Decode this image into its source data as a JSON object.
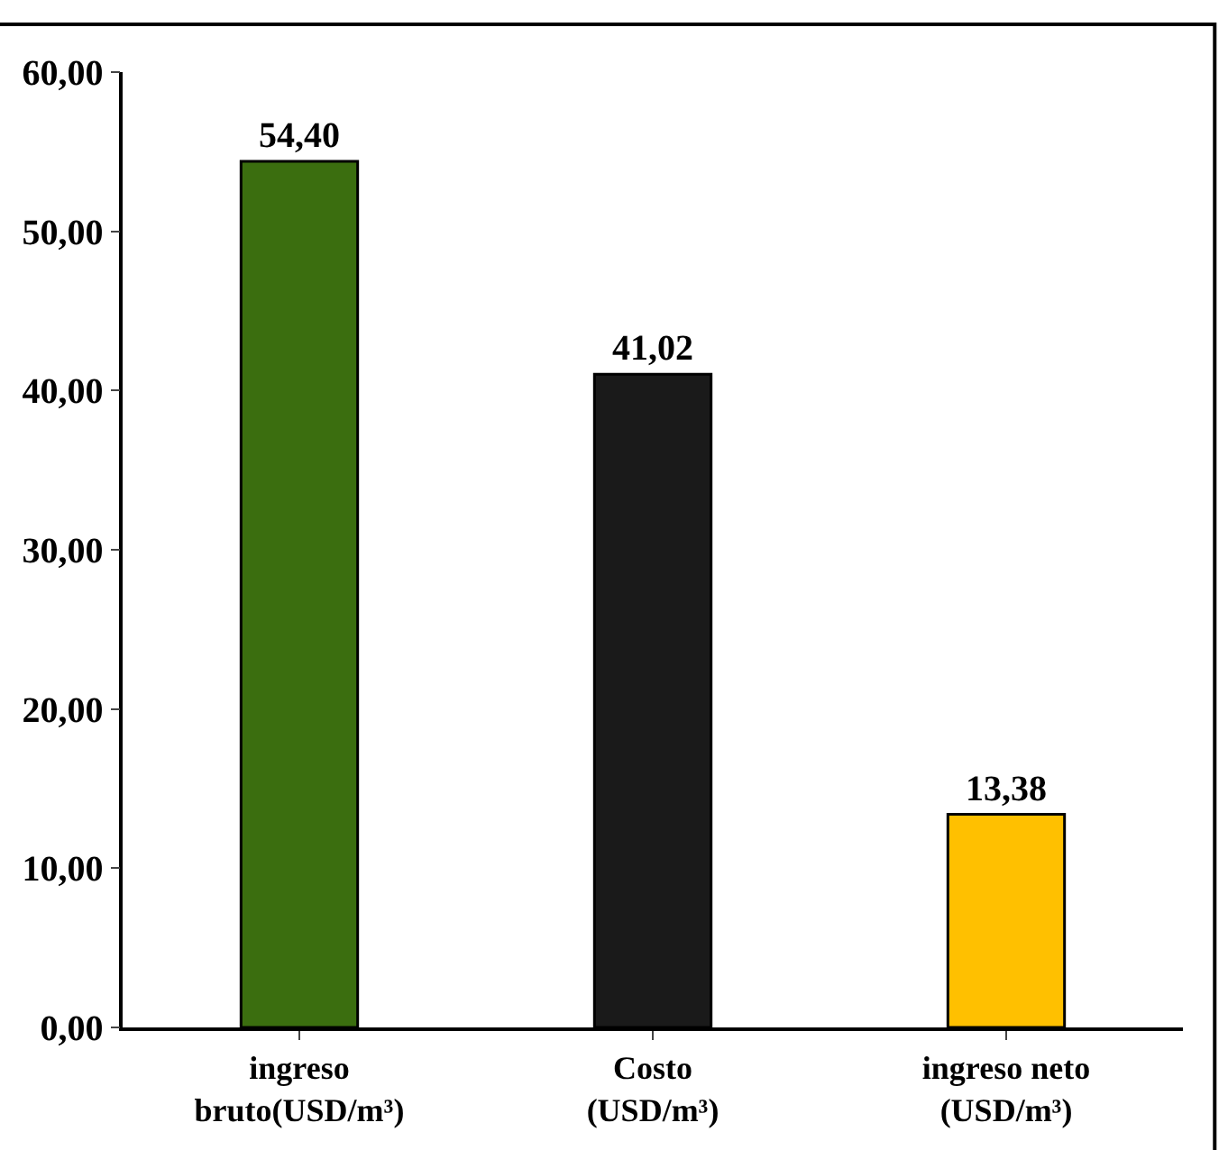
{
  "chart_data": {
    "type": "bar",
    "categories": [
      "ingreso bruto(USD/m³)",
      "Costo (USD/m³)",
      "ingreso neto (USD/m³)"
    ],
    "values": [
      54.4,
      41.02,
      13.38
    ],
    "colors": [
      "#3b6e0f",
      "#1a1a1a",
      "#ffc000"
    ],
    "value_labels": [
      "54,40",
      "41,02",
      "13,38"
    ],
    "ylim": [
      0,
      60
    ],
    "yticks": [
      {
        "value": 0,
        "label": "0,00"
      },
      {
        "value": 10,
        "label": "10,00"
      },
      {
        "value": 20,
        "label": "20,00"
      },
      {
        "value": 30,
        "label": "30,00"
      },
      {
        "value": 40,
        "label": "40,00"
      },
      {
        "value": 50,
        "label": "50,00"
      },
      {
        "value": 60,
        "label": "60,00"
      }
    ],
    "legend": false
  }
}
